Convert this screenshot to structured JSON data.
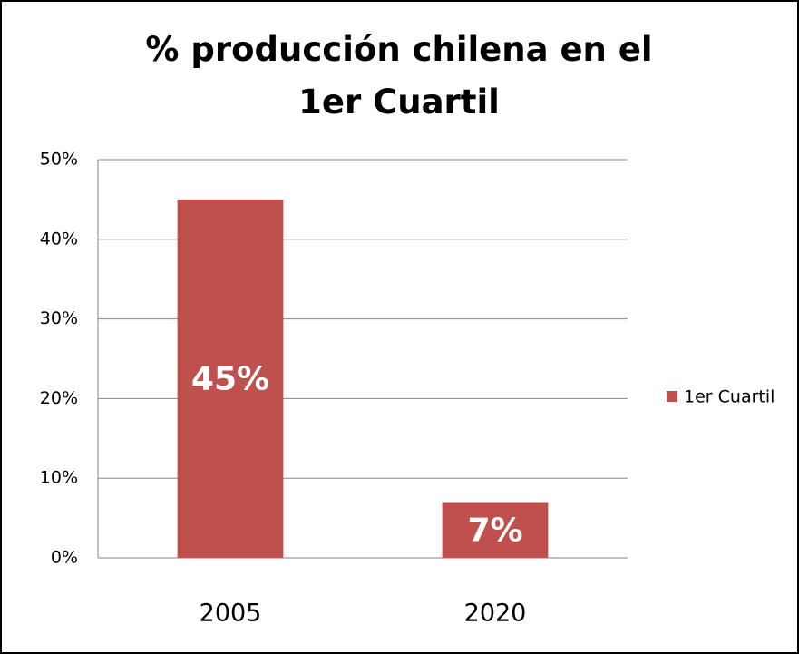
{
  "chart_data": {
    "type": "bar",
    "title": "% producción chilena en el 1er Cuartil",
    "categories": [
      "2005",
      "2020"
    ],
    "series": [
      {
        "name": "1er Cuartil",
        "color": "#c0504d",
        "values": [
          45,
          7
        ],
        "value_labels": [
          "45%",
          "7%"
        ]
      }
    ],
    "ylim": [
      0,
      50
    ],
    "yticks": [
      {
        "value": 0,
        "label": "0%"
      },
      {
        "value": 10,
        "label": "10%"
      },
      {
        "value": 20,
        "label": "20%"
      },
      {
        "value": 30,
        "label": "30%"
      },
      {
        "value": 40,
        "label": "40%"
      },
      {
        "value": 50,
        "label": "50%"
      }
    ],
    "grid": true,
    "legend": "right"
  }
}
